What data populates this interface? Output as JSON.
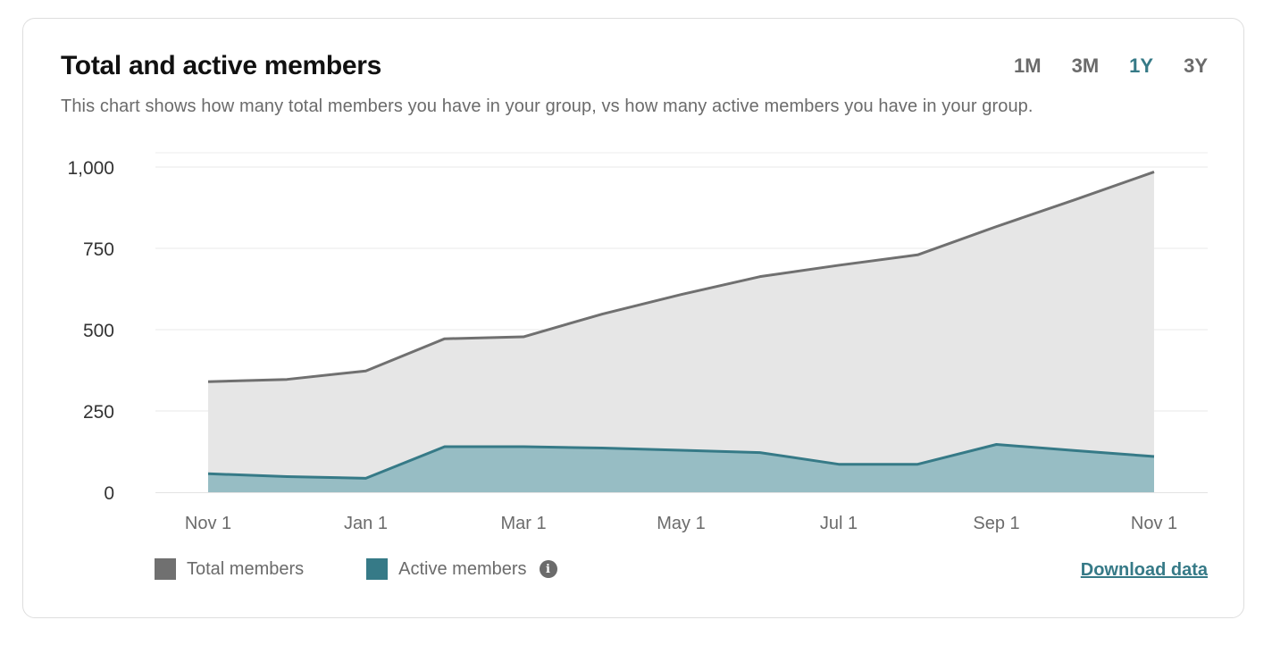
{
  "header": {
    "title": "Total and active members",
    "subtitle": "This chart shows how many total members you have in your group, vs how many active members you have in your group."
  },
  "ranges": [
    {
      "label": "1M",
      "active": false
    },
    {
      "label": "3M",
      "active": false
    },
    {
      "label": "1Y",
      "active": true
    },
    {
      "label": "3Y",
      "active": false
    }
  ],
  "legend": {
    "total_label": "Total members",
    "active_label": "Active members",
    "info_icon": "info-icon"
  },
  "download_label": "Download data",
  "colors": {
    "total_line": "#707070",
    "total_fill": "#e6e6e6",
    "active_line": "#367a87",
    "active_fill": "#97bdc4",
    "accent": "#367a87"
  },
  "chart_data": {
    "type": "area",
    "x": [
      "Nov 1",
      "Dec 1",
      "Jan 1",
      "Feb 1",
      "Mar 1",
      "Apr 1",
      "May 1",
      "Jun 1",
      "Jul 1",
      "Aug 1",
      "Sep 1",
      "Oct 1",
      "Nov 1"
    ],
    "x_tick_labels": [
      "Nov 1",
      "Jan 1",
      "Mar 1",
      "May 1",
      "Jul 1",
      "Sep 1",
      "Nov 1"
    ],
    "y_ticks": [
      0,
      250,
      500,
      750,
      1000
    ],
    "y_tick_labels": [
      "0",
      "250",
      "500",
      "750",
      "1,000"
    ],
    "ylim": [
      0,
      1000
    ],
    "grid": true,
    "series": [
      {
        "name": "Total members",
        "values": [
          340,
          347,
          373,
          472,
          478,
          548,
          608,
          663,
          698,
          730,
          817,
          900,
          985
        ]
      },
      {
        "name": "Active members",
        "values": [
          57,
          48,
          43,
          140,
          140,
          136,
          129,
          122,
          86,
          86,
          147,
          128,
          110
        ]
      }
    ]
  }
}
